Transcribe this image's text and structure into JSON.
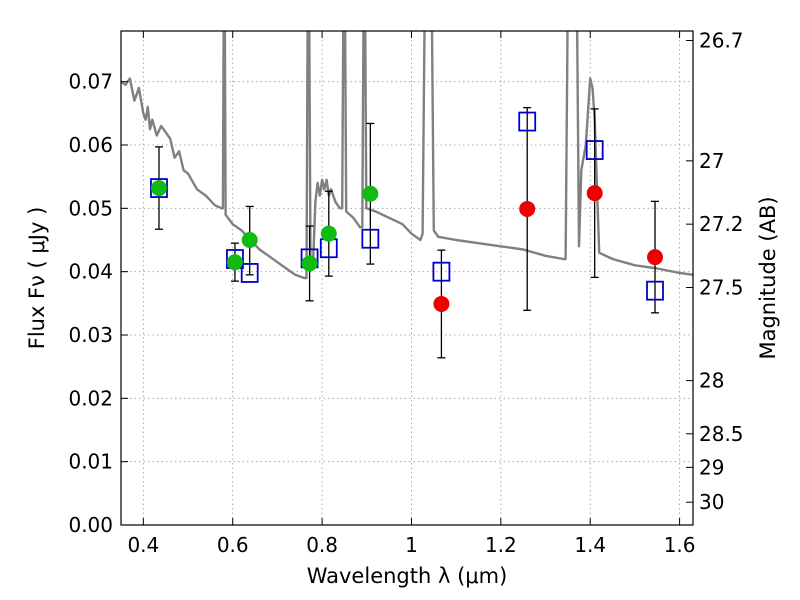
{
  "chart_data": {
    "type": "scatter",
    "title": "",
    "xlabel": "Wavelength  λ (μm)",
    "ylabel": "Flux  Fν  ( μJy )",
    "ylabel_right": "Magnitude (AB)",
    "xlim": [
      0.35,
      1.63
    ],
    "ylim": [
      0,
      0.078
    ],
    "grid": true,
    "x_ticks": [
      0.4,
      0.6,
      0.8,
      1.0,
      1.2,
      1.4,
      1.6
    ],
    "x_tick_labels": [
      "0.4",
      "0.6",
      "0.8",
      "1",
      "1.2",
      "1.4",
      "1.6"
    ],
    "y_ticks": [
      0,
      0.01,
      0.02,
      0.03,
      0.04,
      0.05,
      0.06,
      0.07
    ],
    "y_tick_labels": [
      "0.00",
      "0.01",
      "0.02",
      "0.03",
      "0.04",
      "0.05",
      "0.06",
      "0.07"
    ],
    "right_ticks": [
      {
        "flux": 0.0765,
        "label": "26.7"
      },
      {
        "flux": 0.0575,
        "label": "27"
      },
      {
        "flux": 0.0475,
        "label": "27.2"
      },
      {
        "flux": 0.0375,
        "label": "27.5"
      },
      {
        "flux": 0.0228,
        "label": "28"
      },
      {
        "flux": 0.0144,
        "label": "28.5"
      },
      {
        "flux": 0.0091,
        "label": "29"
      },
      {
        "flux": 0.0036,
        "label": "30"
      }
    ],
    "colors": {
      "model": "#808080",
      "green": "#11bb11",
      "red": "#ee0000",
      "blue": "#0000cc",
      "grid": "#999999"
    },
    "series": [
      {
        "marker": "circle",
        "color": "green",
        "points": [
          {
            "x": 0.435,
            "y": 0.0532,
            "err": [
              0.0467,
              0.0597
            ]
          },
          {
            "x": 0.605,
            "y": 0.0415,
            "err": [
              0.0385,
              0.0445
            ]
          },
          {
            "x": 0.638,
            "y": 0.045,
            "err": [
              0.0395,
              0.0503
            ]
          },
          {
            "x": 0.772,
            "y": 0.0413,
            "err": [
              0.0354,
              0.0472
            ]
          },
          {
            "x": 0.815,
            "y": 0.046,
            "err": [
              0.0393,
              0.0527
            ]
          },
          {
            "x": 0.908,
            "y": 0.0523,
            "err": [
              0.0412,
              0.0634
            ]
          }
        ]
      },
      {
        "marker": "circle",
        "color": "red",
        "points": [
          {
            "x": 1.067,
            "y": 0.0349,
            "err": [
              0.0264,
              0.0434
            ]
          },
          {
            "x": 1.259,
            "y": 0.0499,
            "err": [
              0.0339,
              0.0659
            ]
          },
          {
            "x": 1.41,
            "y": 0.0524,
            "err": [
              0.0391,
              0.0657
            ]
          },
          {
            "x": 1.545,
            "y": 0.0423,
            "err": [
              0.0335,
              0.0511
            ]
          }
        ]
      },
      {
        "marker": "square",
        "color": "blue",
        "points": [
          {
            "x": 0.435,
            "y": 0.0532
          },
          {
            "x": 0.605,
            "y": 0.042
          },
          {
            "x": 0.638,
            "y": 0.0398
          },
          {
            "x": 0.772,
            "y": 0.0421
          },
          {
            "x": 0.815,
            "y": 0.0437
          },
          {
            "x": 0.908,
            "y": 0.0452
          },
          {
            "x": 1.067,
            "y": 0.04
          },
          {
            "x": 1.259,
            "y": 0.0637
          },
          {
            "x": 1.41,
            "y": 0.0592
          },
          {
            "x": 1.545,
            "y": 0.037
          }
        ]
      },
      {
        "marker": "line",
        "color": "model",
        "points": [
          {
            "x": 0.35,
            "y": 0.07
          },
          {
            "x": 0.36,
            "y": 0.0695
          },
          {
            "x": 0.37,
            "y": 0.0705
          },
          {
            "x": 0.38,
            "y": 0.067
          },
          {
            "x": 0.39,
            "y": 0.069
          },
          {
            "x": 0.4,
            "y": 0.065
          },
          {
            "x": 0.405,
            "y": 0.064
          },
          {
            "x": 0.41,
            "y": 0.066
          },
          {
            "x": 0.415,
            "y": 0.0625
          },
          {
            "x": 0.42,
            "y": 0.064
          },
          {
            "x": 0.43,
            "y": 0.0615
          },
          {
            "x": 0.44,
            "y": 0.063
          },
          {
            "x": 0.45,
            "y": 0.062
          },
          {
            "x": 0.46,
            "y": 0.061
          },
          {
            "x": 0.47,
            "y": 0.058
          },
          {
            "x": 0.48,
            "y": 0.059
          },
          {
            "x": 0.49,
            "y": 0.056
          },
          {
            "x": 0.5,
            "y": 0.0555
          },
          {
            "x": 0.52,
            "y": 0.053
          },
          {
            "x": 0.54,
            "y": 0.052
          },
          {
            "x": 0.56,
            "y": 0.0505
          },
          {
            "x": 0.575,
            "y": 0.05
          },
          {
            "x": 0.578,
            "y": 0.05
          },
          {
            "x": 0.58,
            "y": 0.085
          },
          {
            "x": 0.582,
            "y": 0.085
          },
          {
            "x": 0.584,
            "y": 0.049
          },
          {
            "x": 0.6,
            "y": 0.0475
          },
          {
            "x": 0.62,
            "y": 0.0465
          },
          {
            "x": 0.64,
            "y": 0.045
          },
          {
            "x": 0.66,
            "y": 0.0435
          },
          {
            "x": 0.68,
            "y": 0.0425
          },
          {
            "x": 0.7,
            "y": 0.0415
          },
          {
            "x": 0.72,
            "y": 0.0405
          },
          {
            "x": 0.74,
            "y": 0.0395
          },
          {
            "x": 0.76,
            "y": 0.039
          },
          {
            "x": 0.765,
            "y": 0.039
          },
          {
            "x": 0.768,
            "y": 0.085
          },
          {
            "x": 0.771,
            "y": 0.085
          },
          {
            "x": 0.774,
            "y": 0.041
          },
          {
            "x": 0.78,
            "y": 0.042
          },
          {
            "x": 0.785,
            "y": 0.051
          },
          {
            "x": 0.79,
            "y": 0.054
          },
          {
            "x": 0.795,
            "y": 0.052
          },
          {
            "x": 0.8,
            "y": 0.0545
          },
          {
            "x": 0.805,
            "y": 0.053
          },
          {
            "x": 0.81,
            "y": 0.0545
          },
          {
            "x": 0.815,
            "y": 0.052
          },
          {
            "x": 0.82,
            "y": 0.053
          },
          {
            "x": 0.83,
            "y": 0.051
          },
          {
            "x": 0.84,
            "y": 0.05
          },
          {
            "x": 0.845,
            "y": 0.05
          },
          {
            "x": 0.848,
            "y": 0.085
          },
          {
            "x": 0.851,
            "y": 0.085
          },
          {
            "x": 0.854,
            "y": 0.0495
          },
          {
            "x": 0.87,
            "y": 0.0485
          },
          {
            "x": 0.885,
            "y": 0.047
          },
          {
            "x": 0.89,
            "y": 0.047
          },
          {
            "x": 0.893,
            "y": 0.085
          },
          {
            "x": 0.896,
            "y": 0.085
          },
          {
            "x": 0.899,
            "y": 0.05
          },
          {
            "x": 0.92,
            "y": 0.0495
          },
          {
            "x": 0.95,
            "y": 0.0485
          },
          {
            "x": 0.98,
            "y": 0.0475
          },
          {
            "x": 1.0,
            "y": 0.046
          },
          {
            "x": 1.02,
            "y": 0.045
          },
          {
            "x": 1.025,
            "y": 0.046
          },
          {
            "x": 1.03,
            "y": 0.085
          },
          {
            "x": 1.045,
            "y": 0.085
          },
          {
            "x": 1.05,
            "y": 0.0465
          },
          {
            "x": 1.06,
            "y": 0.0455
          },
          {
            "x": 1.1,
            "y": 0.045
          },
          {
            "x": 1.15,
            "y": 0.0445
          },
          {
            "x": 1.2,
            "y": 0.044
          },
          {
            "x": 1.25,
            "y": 0.0435
          },
          {
            "x": 1.3,
            "y": 0.0425
          },
          {
            "x": 1.34,
            "y": 0.042
          },
          {
            "x": 1.345,
            "y": 0.042
          },
          {
            "x": 1.35,
            "y": 0.085
          },
          {
            "x": 1.37,
            "y": 0.085
          },
          {
            "x": 1.375,
            "y": 0.044
          },
          {
            "x": 1.38,
            "y": 0.056
          },
          {
            "x": 1.39,
            "y": 0.06
          },
          {
            "x": 1.4,
            "y": 0.0705
          },
          {
            "x": 1.405,
            "y": 0.069
          },
          {
            "x": 1.41,
            "y": 0.064
          },
          {
            "x": 1.42,
            "y": 0.043
          },
          {
            "x": 1.45,
            "y": 0.042
          },
          {
            "x": 1.5,
            "y": 0.041
          },
          {
            "x": 1.55,
            "y": 0.0405
          },
          {
            "x": 1.6,
            "y": 0.0398
          },
          {
            "x": 1.63,
            "y": 0.0395
          }
        ]
      }
    ]
  }
}
